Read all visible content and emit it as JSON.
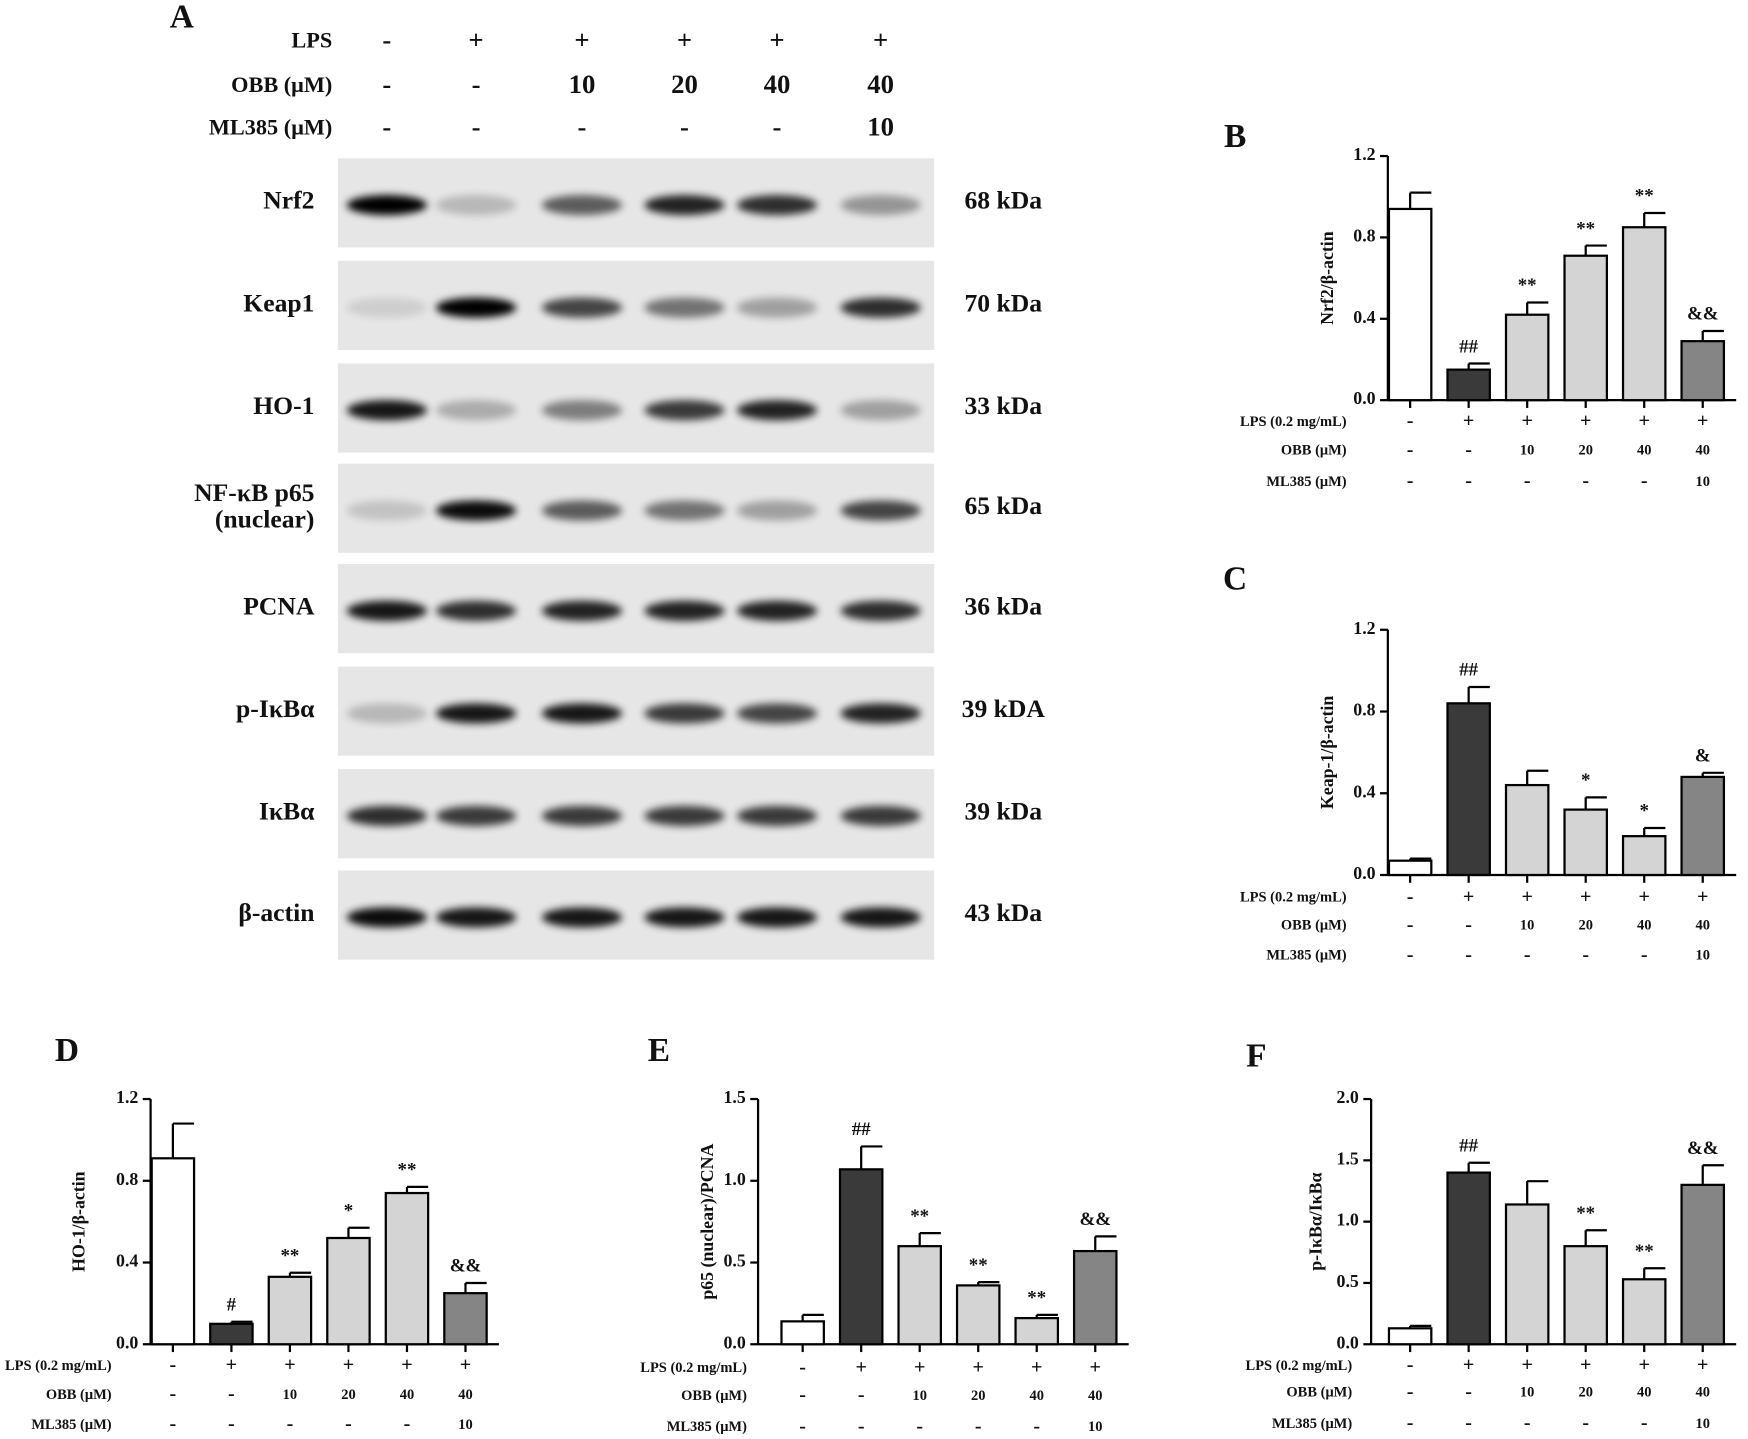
{
  "panel_a": {
    "label": "A",
    "header_rows": [
      {
        "label": "LPS",
        "values": [
          "-",
          "+",
          "+",
          "+",
          "+",
          "+"
        ]
      },
      {
        "label": "OBB (μM)",
        "values": [
          "-",
          "-",
          "10",
          "20",
          "40",
          "40"
        ]
      },
      {
        "label": "ML385 (μM)",
        "values": [
          "-",
          "-",
          "-",
          "-",
          "-",
          "10"
        ]
      }
    ],
    "blots": [
      {
        "name": [
          "Nrf2"
        ],
        "size": "68 kDa",
        "bands": [
          1,
          0.2,
          0.6,
          0.85,
          0.8,
          0.35
        ]
      },
      {
        "name": [
          "Keap1"
        ],
        "size": "70 kDa",
        "bands": [
          0.1,
          1,
          0.7,
          0.5,
          0.3,
          0.8
        ]
      },
      {
        "name": [
          "HO-1"
        ],
        "size": "33 kDa",
        "bands": [
          0.9,
          0.25,
          0.45,
          0.75,
          0.85,
          0.3
        ]
      },
      {
        "name": [
          "NF-κB p65",
          "(nuclear)"
        ],
        "size": "65 kDa",
        "bands": [
          0.15,
          0.95,
          0.6,
          0.5,
          0.3,
          0.7
        ]
      },
      {
        "name": [
          "PCNA"
        ],
        "size": "36 kDa",
        "bands": [
          0.9,
          0.8,
          0.85,
          0.85,
          0.85,
          0.8
        ]
      },
      {
        "name": [
          "p-IκBα"
        ],
        "size": "39 kDA",
        "bands": [
          0.2,
          0.9,
          0.9,
          0.75,
          0.7,
          0.85
        ]
      },
      {
        "name": [
          "IκBα"
        ],
        "size": "39 kDa",
        "bands": [
          0.8,
          0.75,
          0.75,
          0.75,
          0.75,
          0.75
        ]
      },
      {
        "name": [
          "β-actin"
        ],
        "size": "43 kDa",
        "bands": [
          0.95,
          0.9,
          0.9,
          0.9,
          0.9,
          0.9
        ]
      }
    ]
  },
  "chart_data": [
    {
      "type": "bar",
      "label": "B",
      "ylabel": "Nrf2/β-actin",
      "values": [
        0.94,
        0.15,
        0.42,
        0.71,
        0.85,
        0.29
      ],
      "errors": [
        0.08,
        0.03,
        0.06,
        0.05,
        0.07,
        0.05
      ],
      "annotations": [
        null,
        "##",
        "**",
        "**",
        "**",
        "&&"
      ],
      "colors": [
        "#ffffff",
        "#3a3a3a",
        "#d4d4d4",
        "#d4d4d4",
        "#d4d4d4",
        "#858585"
      ],
      "ylim": [
        0,
        1.2
      ],
      "yticks": [
        {
          "value": 0,
          "label": "0.0"
        },
        0.4,
        0.8,
        1.2
      ],
      "condition_rows": [
        {
          "label": "LPS (0.2 mg/mL)",
          "values": [
            "-",
            "+",
            "+",
            "+",
            "+",
            "+"
          ]
        },
        {
          "label": "OBB (μM)",
          "values": [
            "-",
            "-",
            "10",
            "20",
            "40",
            "40"
          ]
        },
        {
          "label": "ML385 (μM)",
          "values": [
            "-",
            "-",
            "-",
            "-",
            "-",
            "10"
          ]
        }
      ]
    },
    {
      "type": "bar",
      "label": "C",
      "ylabel": "Keap-1/β-actin",
      "values": [
        0.07,
        0.84,
        0.44,
        0.32,
        0.19,
        0.48
      ],
      "errors": [
        0.01,
        0.08,
        0.07,
        0.06,
        0.04,
        0.02
      ],
      "annotations": [
        null,
        "##",
        null,
        "*",
        "*",
        "&"
      ],
      "colors": [
        "#ffffff",
        "#3a3a3a",
        "#d4d4d4",
        "#d4d4d4",
        "#d4d4d4",
        "#858585"
      ],
      "ylim": [
        0,
        1.2
      ],
      "yticks": [
        {
          "value": 0,
          "label": "0.0"
        },
        0.4,
        0.8,
        1.2
      ],
      "condition_rows": [
        {
          "label": "LPS (0.2 mg/mL)",
          "values": [
            "-",
            "+",
            "+",
            "+",
            "+",
            "+"
          ]
        },
        {
          "label": "OBB (μM)",
          "values": [
            "-",
            "-",
            "10",
            "20",
            "40",
            "40"
          ]
        },
        {
          "label": "ML385 (μM)",
          "values": [
            "-",
            "-",
            "-",
            "-",
            "-",
            "10"
          ]
        }
      ]
    },
    {
      "type": "bar",
      "label": "D",
      "ylabel": "HO-1/β-actin",
      "values": [
        0.91,
        0.1,
        0.33,
        0.52,
        0.74,
        0.25
      ],
      "errors": [
        0.17,
        0.01,
        0.02,
        0.05,
        0.03,
        0.05
      ],
      "annotations": [
        null,
        "#",
        "**",
        "*",
        "**",
        "&&"
      ],
      "colors": [
        "#ffffff",
        "#3a3a3a",
        "#d4d4d4",
        "#d4d4d4",
        "#d4d4d4",
        "#858585"
      ],
      "ylim": [
        0,
        1.2
      ],
      "yticks": [
        {
          "value": 0,
          "label": "0.0"
        },
        0.4,
        0.8,
        1.2
      ],
      "condition_rows": [
        {
          "label": "LPS (0.2 mg/mL)",
          "values": [
            "-",
            "+",
            "+",
            "+",
            "+",
            "+"
          ]
        },
        {
          "label": "OBB (μM)",
          "values": [
            "-",
            "-",
            "10",
            "20",
            "40",
            "40"
          ]
        },
        {
          "label": "ML385 (μM)",
          "values": [
            "-",
            "-",
            "-",
            "-",
            "-",
            "10"
          ]
        }
      ]
    },
    {
      "type": "bar",
      "label": "E",
      "ylabel": "p65 (nuclear)/PCNA",
      "values": [
        0.14,
        1.07,
        0.6,
        0.36,
        0.16,
        0.57
      ],
      "errors": [
        0.04,
        0.14,
        0.08,
        0.02,
        0.02,
        0.09
      ],
      "annotations": [
        null,
        "##",
        "**",
        "**",
        "**",
        "&&"
      ],
      "colors": [
        "#ffffff",
        "#3a3a3a",
        "#d4d4d4",
        "#d4d4d4",
        "#d4d4d4",
        "#858585"
      ],
      "ylim": [
        0,
        1.5
      ],
      "yticks": [
        {
          "value": 0,
          "label": "0.0"
        },
        0.5,
        {
          "value": 1,
          "label": "1.0"
        },
        1.5
      ],
      "condition_rows": [
        {
          "label": "LPS (0.2 mg/mL)",
          "values": [
            "-",
            "+",
            "+",
            "+",
            "+",
            "+"
          ]
        },
        {
          "label": "OBB (μM)",
          "values": [
            "-",
            "-",
            "10",
            "20",
            "40",
            "40"
          ]
        },
        {
          "label": "ML385 (μM)",
          "values": [
            "-",
            "-",
            "-",
            "-",
            "-",
            "10"
          ]
        }
      ]
    },
    {
      "type": "bar",
      "label": "F",
      "ylabel": "p-IκBα/IκBα",
      "values": [
        0.13,
        1.4,
        1.14,
        0.8,
        0.53,
        1.3
      ],
      "errors": [
        0.02,
        0.08,
        0.19,
        0.13,
        0.09,
        0.16
      ],
      "annotations": [
        null,
        "##",
        null,
        "**",
        "**",
        "&&"
      ],
      "colors": [
        "#ffffff",
        "#3a3a3a",
        "#d4d4d4",
        "#d4d4d4",
        "#d4d4d4",
        "#858585"
      ],
      "ylim": [
        0,
        2
      ],
      "yticks": [
        {
          "value": 0,
          "label": "0.0"
        },
        0.5,
        {
          "value": 1,
          "label": "1.0"
        },
        1.5,
        {
          "value": 2,
          "label": "2.0"
        }
      ],
      "condition_rows": [
        {
          "label": "LPS (0.2 mg/mL)",
          "values": [
            "-",
            "+",
            "+",
            "+",
            "+",
            "+"
          ]
        },
        {
          "label": "OBB (μM)",
          "values": [
            "-",
            "-",
            "10",
            "20",
            "40",
            "40"
          ]
        },
        {
          "label": "ML385 (μM)",
          "values": [
            "-",
            "-",
            "-",
            "-",
            "-",
            "10"
          ]
        }
      ]
    }
  ]
}
